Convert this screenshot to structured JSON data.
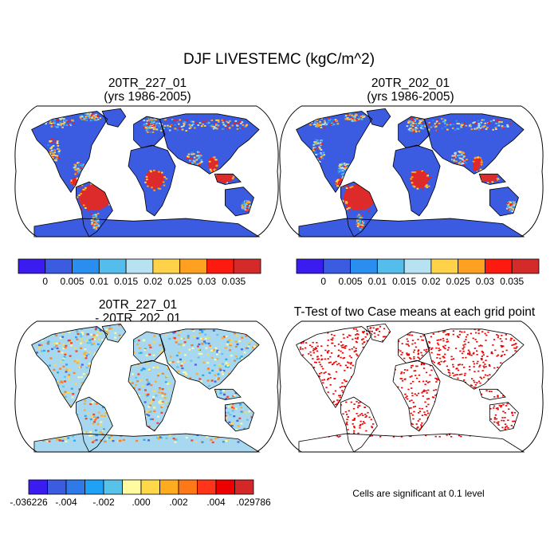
{
  "title": "DJF LIVESTEMC (kgC/m^2)",
  "panels": [
    {
      "title_line1": "20TR_227_01",
      "title_line2": "(yrs 1986-2005)"
    },
    {
      "title_line1": "20TR_202_01",
      "title_line2": "(yrs 1986-2005)"
    },
    {
      "title_line1": "20TR_227_01",
      "title_line2": "- 20TR_202_01"
    },
    {
      "title_line1": "T-Test of two Case means at each grid point",
      "title_line2": ""
    }
  ],
  "colorbar_main": {
    "colors": [
      "#3a1cf0",
      "#3b5be0",
      "#2a8ef0",
      "#55bdec",
      "#b6e2f2",
      "#ffd24a",
      "#ffa020",
      "#ff1a10",
      "#d42a2a"
    ],
    "labels": [
      "0",
      "0.005",
      "0.01",
      "0.015",
      "0.02",
      "0.025",
      "0.03",
      "0.035"
    ]
  },
  "colorbar_diff": {
    "colors": [
      "#3a1cf0",
      "#3b5be0",
      "#2f7ae8",
      "#1fa2f5",
      "#58c3ea",
      "#fffba0",
      "#ffd84a",
      "#ffab20",
      "#ff7818",
      "#ff3418",
      "#ee0000",
      "#d42828"
    ],
    "labels": [
      "-.036226",
      "-.004",
      "-.002",
      ".000",
      ".002",
      ".004",
      ".029786"
    ]
  },
  "significance_note": "Cells are significant at 0.1 level",
  "map_colors": {
    "ocean": "#ffffff",
    "land_low": "#3b5be0",
    "tropical_high": "#dd2a2a",
    "diff_base": "#a7d8ef",
    "ttest_sig": "#ee0000"
  }
}
